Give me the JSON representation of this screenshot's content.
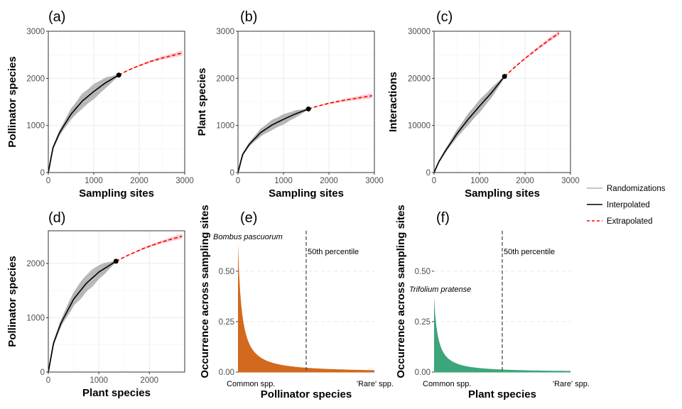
{
  "chart_data": [
    {
      "panel": "(a)",
      "type": "line",
      "xlabel": "Sampling sites",
      "ylabel": "Pollinator species",
      "xlim": [
        0,
        3000
      ],
      "ylim": [
        0,
        3000
      ],
      "xticks": [
        0,
        1000,
        2000,
        3000
      ],
      "yticks": [
        0,
        1000,
        2000,
        3000
      ],
      "observed_point": {
        "x": 1550,
        "y": 2070
      },
      "interpolated": {
        "x": [
          0,
          100,
          250,
          500,
          750,
          1000,
          1250,
          1550
        ],
        "y": [
          0,
          520,
          850,
          1240,
          1520,
          1720,
          1900,
          2070
        ]
      },
      "extrapolated": {
        "x": [
          1550,
          1750,
          2000,
          2250,
          2500,
          2750,
          2950
        ],
        "y": [
          2070,
          2170,
          2270,
          2360,
          2430,
          2490,
          2540
        ]
      },
      "grid": true
    },
    {
      "panel": "(b)",
      "type": "line",
      "xlabel": "Sampling sites",
      "ylabel": "Plant species",
      "xlim": [
        0,
        3000
      ],
      "ylim": [
        0,
        3000
      ],
      "xticks": [
        0,
        1000,
        2000,
        3000
      ],
      "yticks": [
        0,
        1000,
        2000,
        3000
      ],
      "observed_point": {
        "x": 1550,
        "y": 1350
      },
      "interpolated": {
        "x": [
          0,
          100,
          250,
          500,
          750,
          1000,
          1250,
          1550
        ],
        "y": [
          0,
          380,
          600,
          850,
          1010,
          1130,
          1240,
          1350
        ]
      },
      "extrapolated": {
        "x": [
          1550,
          1750,
          2000,
          2250,
          2500,
          2750,
          2950
        ],
        "y": [
          1350,
          1410,
          1470,
          1520,
          1560,
          1600,
          1630
        ]
      },
      "grid": true
    },
    {
      "panel": "(c)",
      "type": "line",
      "xlabel": "Sampling sites",
      "ylabel": "Interactions",
      "xlim": [
        0,
        3000
      ],
      "ylim": [
        0,
        30000
      ],
      "xticks": [
        0,
        1000,
        2000,
        3000
      ],
      "yticks": [
        0,
        10000,
        20000,
        30000
      ],
      "observed_point": {
        "x": 1550,
        "y": 20400
      },
      "interpolated": {
        "x": [
          0,
          100,
          250,
          500,
          750,
          1000,
          1250,
          1550
        ],
        "y": [
          0,
          2200,
          4600,
          8200,
          11300,
          14100,
          16800,
          20400
        ]
      },
      "extrapolated": {
        "x": [
          1550,
          1800,
          2050,
          2300,
          2550,
          2750
        ],
        "y": [
          20400,
          22600,
          24600,
          26500,
          28300,
          29600
        ]
      },
      "grid": true
    },
    {
      "panel": "(d)",
      "type": "line",
      "xlabel": "Plant species",
      "ylabel": "Pollinator species",
      "xlim": [
        0,
        2700
      ],
      "ylim": [
        0,
        2600
      ],
      "xticks": [
        0,
        1000,
        2000
      ],
      "yticks": [
        0,
        1000,
        2000
      ],
      "observed_point": {
        "x": 1340,
        "y": 2040
      },
      "interpolated": {
        "x": [
          0,
          100,
          250,
          500,
          750,
          1000,
          1340
        ],
        "y": [
          0,
          520,
          900,
          1340,
          1630,
          1840,
          2040
        ]
      },
      "extrapolated": {
        "x": [
          1340,
          1600,
          1900,
          2200,
          2450,
          2650
        ],
        "y": [
          2040,
          2160,
          2280,
          2380,
          2450,
          2500
        ]
      },
      "grid": true
    },
    {
      "panel": "(e)",
      "type": "area",
      "xlabel": "Pollinator species",
      "ylabel": "Occurrence across sampling sites",
      "ylim": [
        0,
        0.7
      ],
      "yticks": [
        0.0,
        0.25,
        0.5
      ],
      "ytick_labels": [
        "0.00",
        "0.25",
        "0.50"
      ],
      "x_labels": [
        "Common spp.",
        "'Rare' spp."
      ],
      "annotation_top": "Bombus pascuorum",
      "top_value": 0.63,
      "percentile_label": "50th percentile",
      "percentile_position": 0.5,
      "color": "#D2691E"
    },
    {
      "panel": "(f)",
      "type": "area",
      "xlabel": "Plant species",
      "ylabel": "Occurrence across sampling sites",
      "ylim": [
        0,
        0.7
      ],
      "yticks": [
        0.0,
        0.25,
        0.5
      ],
      "ytick_labels": [
        "0.00",
        "0.25",
        "0.50"
      ],
      "x_labels": [
        "Common spp.",
        "'Rare' spp."
      ],
      "annotation_top": "Trifolium pratense",
      "top_value": 0.37,
      "percentile_label": "50th percentile",
      "percentile_position": 0.5,
      "color": "#3CA57A"
    }
  ],
  "legend": {
    "position": "right",
    "items": [
      {
        "label": "Randomizations",
        "style": "gray-solid"
      },
      {
        "label": "Interpolated",
        "style": "black-solid"
      },
      {
        "label": "Extrapolated",
        "style": "red-dashed"
      }
    ]
  },
  "colors": {
    "randomization": "#b3b3b3",
    "interpolated": "#000000",
    "extrapolated": "#ff0000",
    "ribbon": "#f7c3c8",
    "grid": "#ebebeb",
    "percentile_line": "#4d4d4d"
  }
}
